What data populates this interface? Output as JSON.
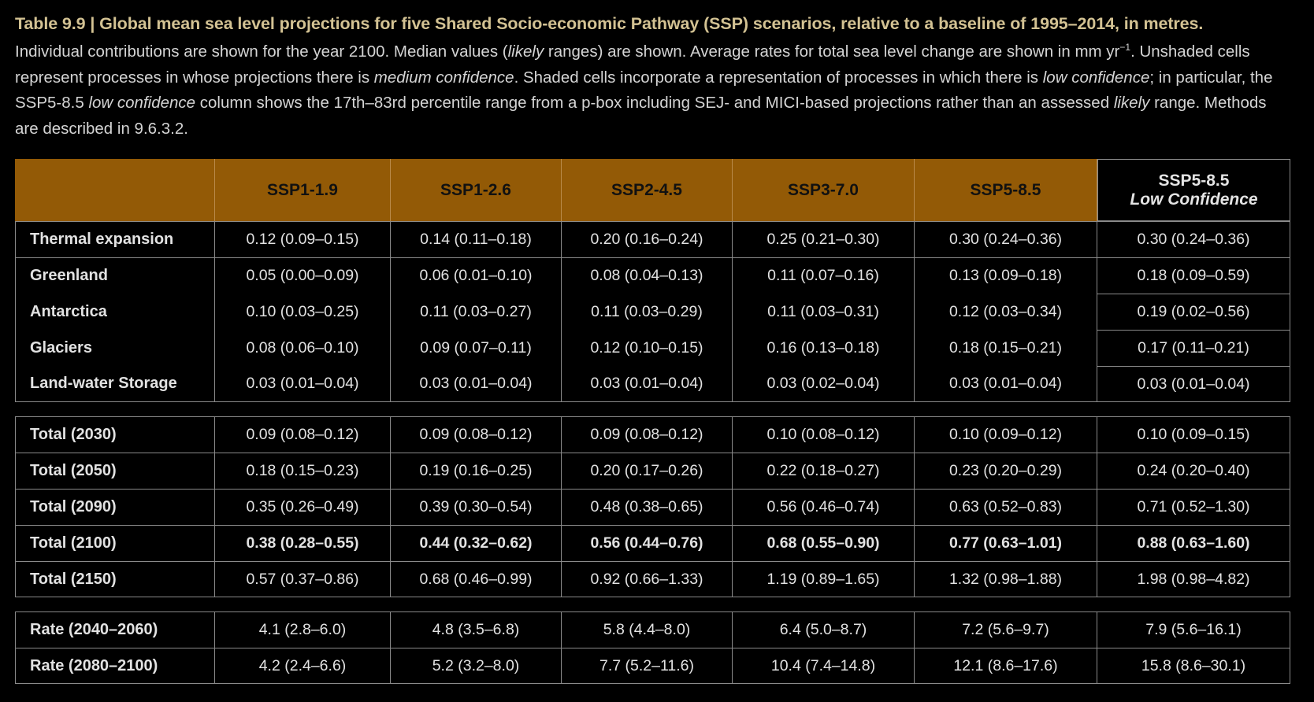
{
  "caption": {
    "title": "Table 9.9 | Global mean sea level projections for five Shared Socio-economic Pathway (SSP) scenarios, relative to a baseline of 1995–2014, in metres.",
    "parts": [
      "Individual contributions are shown for the year 2100. Median values (",
      "likely",
      " ranges) are shown. Average rates for total sea level change are shown in mm yr",
      "−1",
      ". Unshaded cells represent processes in whose projections there is ",
      "medium confidence",
      ". Shaded cells incorporate a representation of processes in which there is ",
      "low confidence",
      "; in particular, the SSP5-8.5 ",
      "low confidence",
      " column shows the 17th–83rd percentile range from a p-box including SEJ- and MICI-based projections rather than an assessed ",
      "likely",
      " range. Methods are described in 9.6.3.2."
    ]
  },
  "table": {
    "header": [
      "SSP1-1.9",
      "SSP1-2.6",
      "SSP2-4.5",
      "SSP3-7.0",
      "SSP5-8.5",
      {
        "title": "SSP5-8.5",
        "subtitle": "Low Confidence"
      }
    ],
    "sections": [
      {
        "rows": [
          {
            "label": "Thermal expansion",
            "values": [
              "0.12 (0.09–0.15)",
              "0.14 (0.11–0.18)",
              "0.20 (0.16–0.24)",
              "0.25 (0.21–0.30)",
              "0.30 (0.24–0.36)",
              "0.30 (0.24–0.36)"
            ]
          },
          {
            "label": "Greenland",
            "values": [
              "0.05 (0.00–0.09)",
              "0.06 (0.01–0.10)",
              "0.08 (0.04–0.13)",
              "0.11 (0.07–0.16)",
              "0.13 (0.09–0.18)",
              "0.18 (0.09–0.59)"
            ]
          },
          {
            "label": "Antarctica",
            "values": [
              "0.10 (0.03–0.25)",
              "0.11 (0.03–0.27)",
              "0.11 (0.03–0.29)",
              "0.11 (0.03–0.31)",
              "0.12 (0.03–0.34)",
              "0.19 (0.02–0.56)"
            ]
          },
          {
            "label": "Glaciers",
            "values": [
              "0.08 (0.06–0.10)",
              "0.09 (0.07–0.11)",
              "0.12 (0.10–0.15)",
              "0.16 (0.13–0.18)",
              "0.18 (0.15–0.21)",
              "0.17 (0.11–0.21)"
            ]
          },
          {
            "label": "Land-water Storage",
            "values": [
              "0.03 (0.01–0.04)",
              "0.03 (0.01–0.04)",
              "0.03 (0.01–0.04)",
              "0.03 (0.02–0.04)",
              "0.03 (0.01–0.04)",
              "0.03 (0.01–0.04)"
            ]
          }
        ]
      },
      {
        "rows": [
          {
            "label": "Total (2030)",
            "values": [
              "0.09 (0.08–0.12)",
              "0.09 (0.08–0.12)",
              "0.09 (0.08–0.12)",
              "0.10 (0.08–0.12)",
              "0.10 (0.09–0.12)",
              "0.10 (0.09–0.15)"
            ]
          },
          {
            "label": "Total (2050)",
            "values": [
              "0.18 (0.15–0.23)",
              "0.19 (0.16–0.25)",
              "0.20 (0.17–0.26)",
              "0.22 (0.18–0.27)",
              "0.23 (0.20–0.29)",
              "0.24 (0.20–0.40)"
            ]
          },
          {
            "label": "Total (2090)",
            "values": [
              "0.35 (0.26–0.49)",
              "0.39 (0.30–0.54)",
              "0.48 (0.38–0.65)",
              "0.56 (0.46–0.74)",
              "0.63 (0.52–0.83)",
              "0.71 (0.52–1.30)"
            ]
          },
          {
            "label": "Total (2100)",
            "bold": true,
            "values": [
              "0.38 (0.28–0.55)",
              "0.44 (0.32–0.62)",
              "0.56 (0.44–0.76)",
              "0.68 (0.55–0.90)",
              "0.77 (0.63–1.01)",
              "0.88 (0.63–1.60)"
            ]
          },
          {
            "label": "Total (2150)",
            "values": [
              "0.57 (0.37–0.86)",
              "0.68 (0.46–0.99)",
              "0.92 (0.66–1.33)",
              "1.19 (0.89–1.65)",
              "1.32 (0.98–1.88)",
              "1.98 (0.98–4.82)"
            ]
          }
        ]
      },
      {
        "rows": [
          {
            "label": "Rate (2040–2060)",
            "values": [
              "4.1 (2.8–6.0)",
              "4.8 (3.5–6.8)",
              "5.8 (4.4–8.0)",
              "6.4 (5.0–8.7)",
              "7.2 (5.6–9.7)",
              "7.9 (5.6–16.1)"
            ]
          },
          {
            "label": "Rate (2080–2100)",
            "values": [
              "4.2 (2.4–6.6)",
              "5.2 (3.2–8.0)",
              "7.7 (5.2–11.6)",
              "10.4 (7.4–14.8)",
              "12.1 (8.6–17.6)",
              "15.8 (8.6–30.1)"
            ]
          }
        ]
      }
    ]
  }
}
